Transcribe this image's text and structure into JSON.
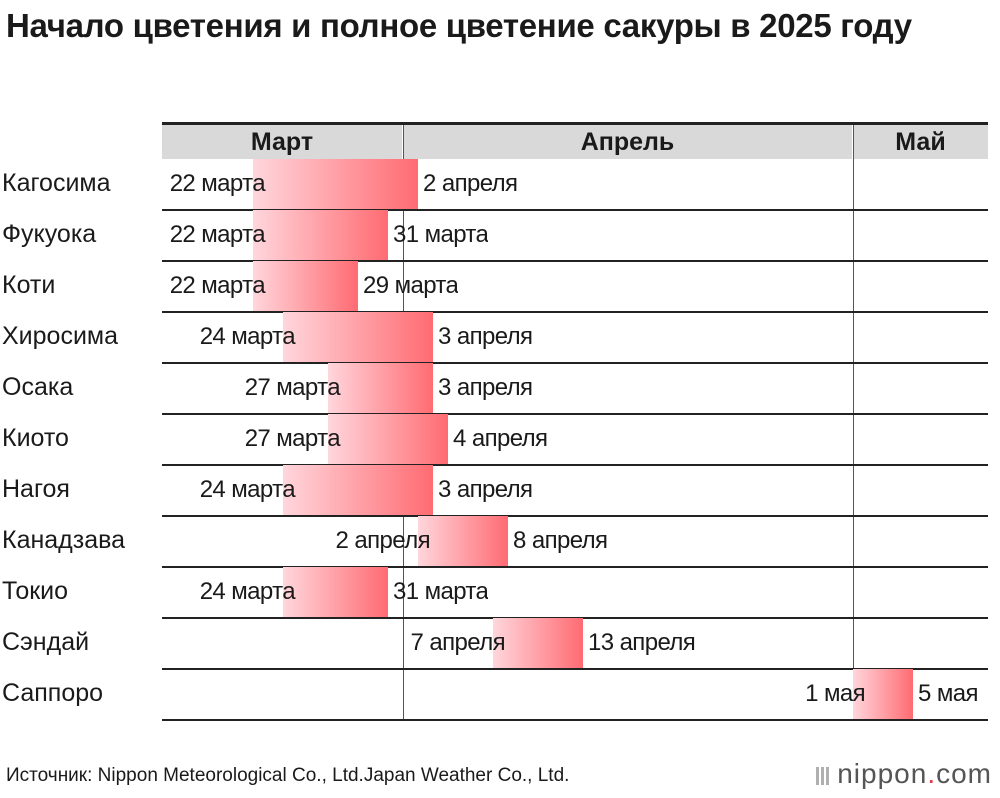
{
  "title": "Начало цветения и полное цветение сакуры в 2025 году",
  "months": [
    "Март",
    "Апрель",
    "Май"
  ],
  "source": "Источник: Nippon Meteorological Co., Ltd.Japan Weather Co., Ltd.",
  "brand": {
    "name": "nippon",
    "dot": ".",
    "suffix": "com"
  },
  "colors": {
    "bar_start": "#ffd6dc",
    "bar_end": "#ff6b72",
    "header_bg": "#d9d9d9"
  },
  "chart_data": {
    "type": "bar",
    "subtype": "gantt",
    "title": "Начало цветения и полное цветение сакуры в 2025 году",
    "x_axis": {
      "unit": "date",
      "min": "2025-03-16",
      "max": "2025-05-09",
      "months": [
        "Март",
        "Апрель",
        "Май"
      ]
    },
    "rows": [
      {
        "city": "Кагосима",
        "start": "2025-03-22",
        "end": "2025-04-02",
        "start_label": "22 марта",
        "end_label": "2 апреля"
      },
      {
        "city": "Фукуока",
        "start": "2025-03-22",
        "end": "2025-03-31",
        "start_label": "22 марта",
        "end_label": "31 марта"
      },
      {
        "city": "Коти",
        "start": "2025-03-22",
        "end": "2025-03-29",
        "start_label": "22 марта",
        "end_label": "29 марта"
      },
      {
        "city": "Хиросима",
        "start": "2025-03-24",
        "end": "2025-04-03",
        "start_label": "24 марта",
        "end_label": "3 апреля"
      },
      {
        "city": "Осака",
        "start": "2025-03-27",
        "end": "2025-04-03",
        "start_label": "27 марта",
        "end_label": "3 апреля"
      },
      {
        "city": "Киото",
        "start": "2025-03-27",
        "end": "2025-04-04",
        "start_label": "27 марта",
        "end_label": "4 апреля"
      },
      {
        "city": "Нагоя",
        "start": "2025-03-24",
        "end": "2025-04-03",
        "start_label": "24 марта",
        "end_label": "3 апреля"
      },
      {
        "city": "Канадзава",
        "start": "2025-04-02",
        "end": "2025-04-08",
        "start_label": "2 апреля",
        "end_label": "8 апреля"
      },
      {
        "city": "Токио",
        "start": "2025-03-24",
        "end": "2025-03-31",
        "start_label": "24 марта",
        "end_label": "31 марта"
      },
      {
        "city": "Сэндай",
        "start": "2025-04-07",
        "end": "2025-04-13",
        "start_label": "7 апреля",
        "end_label": "13 апреля"
      },
      {
        "city": "Саппоро",
        "start": "2025-05-01",
        "end": "2025-05-05",
        "start_label": "1 мая",
        "end_label": "5 мая"
      }
    ]
  }
}
